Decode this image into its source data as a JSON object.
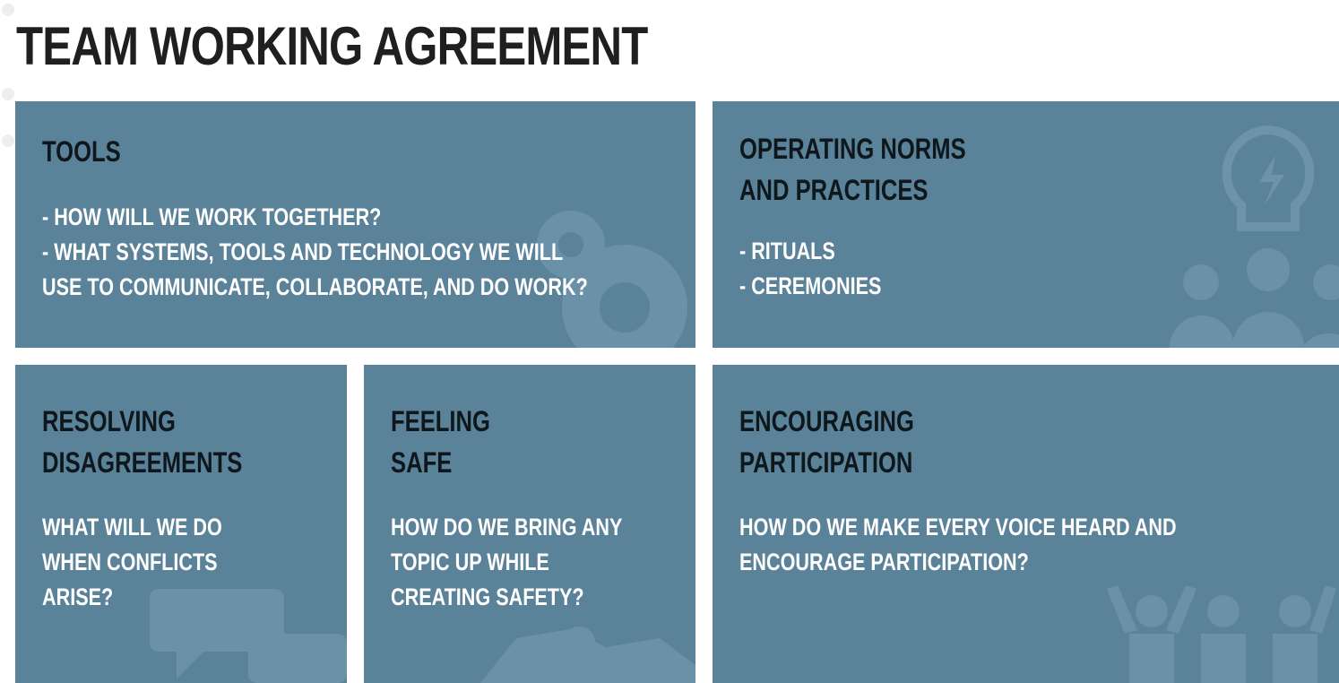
{
  "title": "TEAM WORKING AGREEMENT",
  "colors": {
    "card_background": "#5a8299",
    "heading_text": "#0e171c",
    "body_text": "#ffffff",
    "page_background": "#ffffff"
  },
  "cards": {
    "tools": {
      "heading": "TOOLS",
      "lines": [
        "- HOW WILL WE WORK TOGETHER?",
        "- WHAT SYSTEMS, TOOLS AND TECHNOLOGY WE WILL",
        "USE TO COMMUNICATE, COLLABORATE, AND DO WORK?"
      ],
      "icon": "gears-icon"
    },
    "operating_norms": {
      "heading_lines": [
        "OPERATING NORMS",
        "AND PRACTICES"
      ],
      "lines": [
        "- RITUALS",
        "- CEREMONIES"
      ],
      "icon": "lightbulb-team-icon"
    },
    "resolving": {
      "heading_lines": [
        "RESOLVING",
        "DISAGREEMENTS"
      ],
      "lines": [
        "WHAT WILL WE DO",
        "WHEN CONFLICTS",
        "ARISE?"
      ],
      "icon": "chat-bubbles-icon"
    },
    "feeling_safe": {
      "heading_lines": [
        "FEELING",
        "SAFE"
      ],
      "lines": [
        "HOW DO WE BRING ANY",
        "TOPIC UP WHILE",
        "CREATING SAFETY?"
      ],
      "icon": "handshake-icon"
    },
    "encouraging": {
      "heading_lines": [
        "ENCOURAGING",
        "PARTICIPATION"
      ],
      "lines": [
        "HOW DO WE MAKE EVERY VOICE HEARD AND",
        "ENCOURAGE PARTICIPATION?"
      ],
      "icon": "people-cheering-icon"
    }
  }
}
